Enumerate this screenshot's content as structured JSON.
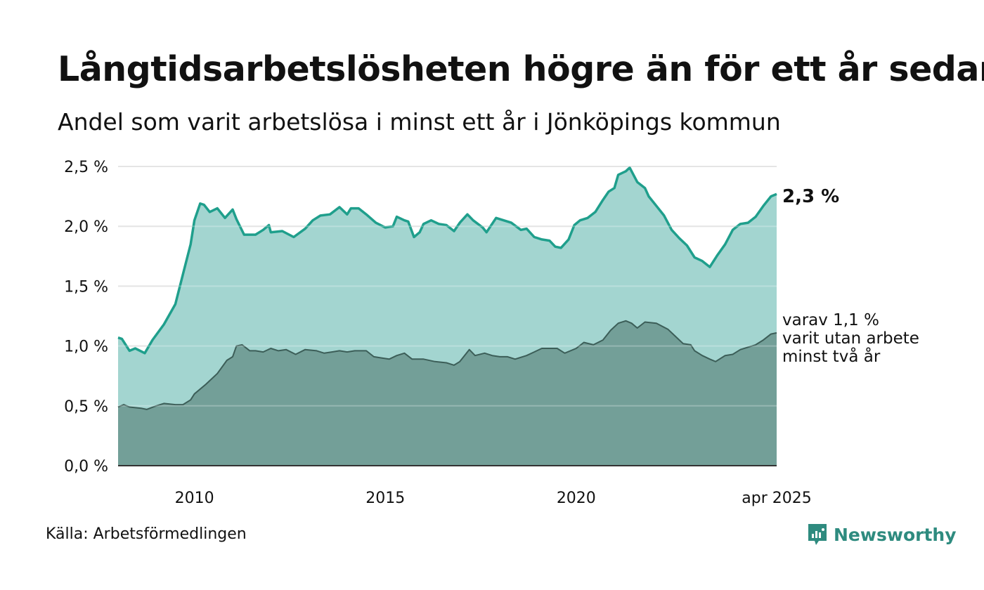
{
  "title": "Långtidsarbetslösheten högre än för ett år sedan",
  "subtitle": "Andel som varit arbetslösa i minst ett år i Jönköpings kommun",
  "source": "Källa: Arbetsförmedlingen",
  "brand": "Newsworthy",
  "colors": {
    "upper_fill": "#a3d5d0",
    "upper_line": "#1f9f8c",
    "lower_fill": "#739f98",
    "lower_line": "#3c5e58",
    "grid": "#dddddd",
    "brand": "#2e8b7f"
  },
  "chart_data": {
    "type": "area",
    "x_start": 2008.0,
    "x_end": 2025.25,
    "ylim": [
      0,
      2.5
    ],
    "yticks": [
      0,
      0.5,
      1.0,
      1.5,
      2.0,
      2.5
    ],
    "ytick_labels": [
      "0,0 %",
      "0,5 %",
      "1,0 %",
      "1,5 %",
      "2,0 %",
      "2,5 %"
    ],
    "xticks": [
      2010,
      2015,
      2020,
      2025.25
    ],
    "xtick_labels": [
      "2010",
      "2015",
      "2020",
      "apr 2025"
    ],
    "grid": true,
    "series": [
      {
        "role": "upper",
        "points": [
          [
            2008.0,
            1.07
          ],
          [
            2008.1,
            1.06
          ],
          [
            2008.3,
            0.96
          ],
          [
            2008.45,
            0.98
          ],
          [
            2008.7,
            0.94
          ],
          [
            2008.9,
            1.05
          ],
          [
            2009.2,
            1.18
          ],
          [
            2009.5,
            1.35
          ],
          [
            2009.7,
            1.6
          ],
          [
            2009.9,
            1.85
          ],
          [
            2010.0,
            2.05
          ],
          [
            2010.15,
            2.19
          ],
          [
            2010.25,
            2.18
          ],
          [
            2010.4,
            2.12
          ],
          [
            2010.6,
            2.15
          ],
          [
            2010.8,
            2.07
          ],
          [
            2011.0,
            2.14
          ],
          [
            2011.1,
            2.06
          ],
          [
            2011.3,
            1.93
          ],
          [
            2011.6,
            1.93
          ],
          [
            2011.8,
            1.97
          ],
          [
            2011.95,
            2.01
          ],
          [
            2012.0,
            1.95
          ],
          [
            2012.3,
            1.96
          ],
          [
            2012.6,
            1.91
          ],
          [
            2012.9,
            1.98
          ],
          [
            2013.1,
            2.05
          ],
          [
            2013.3,
            2.09
          ],
          [
            2013.55,
            2.1
          ],
          [
            2013.8,
            2.16
          ],
          [
            2014.0,
            2.1
          ],
          [
            2014.1,
            2.15
          ],
          [
            2014.3,
            2.15
          ],
          [
            2014.5,
            2.1
          ],
          [
            2014.75,
            2.03
          ],
          [
            2015.0,
            1.99
          ],
          [
            2015.2,
            2.0
          ],
          [
            2015.3,
            2.08
          ],
          [
            2015.5,
            2.05
          ],
          [
            2015.6,
            2.04
          ],
          [
            2015.75,
            1.91
          ],
          [
            2015.9,
            1.95
          ],
          [
            2016.0,
            2.02
          ],
          [
            2016.2,
            2.05
          ],
          [
            2016.4,
            2.02
          ],
          [
            2016.6,
            2.01
          ],
          [
            2016.8,
            1.96
          ],
          [
            2016.95,
            2.03
          ],
          [
            2017.15,
            2.1
          ],
          [
            2017.3,
            2.05
          ],
          [
            2017.55,
            1.99
          ],
          [
            2017.65,
            1.95
          ],
          [
            2017.9,
            2.07
          ],
          [
            2018.1,
            2.05
          ],
          [
            2018.3,
            2.03
          ],
          [
            2018.55,
            1.97
          ],
          [
            2018.7,
            1.98
          ],
          [
            2018.9,
            1.91
          ],
          [
            2019.1,
            1.89
          ],
          [
            2019.3,
            1.88
          ],
          [
            2019.45,
            1.83
          ],
          [
            2019.6,
            1.82
          ],
          [
            2019.8,
            1.89
          ],
          [
            2019.95,
            2.01
          ],
          [
            2020.1,
            2.05
          ],
          [
            2020.3,
            2.07
          ],
          [
            2020.5,
            2.12
          ],
          [
            2020.7,
            2.22
          ],
          [
            2020.85,
            2.29
          ],
          [
            2021.0,
            2.32
          ],
          [
            2021.1,
            2.43
          ],
          [
            2021.3,
            2.46
          ],
          [
            2021.4,
            2.49
          ],
          [
            2021.5,
            2.43
          ],
          [
            2021.6,
            2.37
          ],
          [
            2021.8,
            2.32
          ],
          [
            2021.9,
            2.25
          ],
          [
            2022.1,
            2.17
          ],
          [
            2022.3,
            2.09
          ],
          [
            2022.5,
            1.97
          ],
          [
            2022.7,
            1.9
          ],
          [
            2022.9,
            1.84
          ],
          [
            2023.1,
            1.74
          ],
          [
            2023.3,
            1.71
          ],
          [
            2023.5,
            1.66
          ],
          [
            2023.7,
            1.76
          ],
          [
            2023.9,
            1.85
          ],
          [
            2024.1,
            1.97
          ],
          [
            2024.3,
            2.02
          ],
          [
            2024.5,
            2.03
          ],
          [
            2024.7,
            2.08
          ],
          [
            2024.9,
            2.17
          ],
          [
            2025.1,
            2.25
          ],
          [
            2025.25,
            2.27
          ]
        ]
      },
      {
        "role": "lower",
        "points": [
          [
            2008.0,
            0.49
          ],
          [
            2008.15,
            0.51
          ],
          [
            2008.3,
            0.49
          ],
          [
            2008.6,
            0.48
          ],
          [
            2008.75,
            0.47
          ],
          [
            2009.0,
            0.5
          ],
          [
            2009.2,
            0.52
          ],
          [
            2009.5,
            0.51
          ],
          [
            2009.7,
            0.51
          ],
          [
            2009.9,
            0.55
          ],
          [
            2010.0,
            0.6
          ],
          [
            2010.3,
            0.68
          ],
          [
            2010.6,
            0.77
          ],
          [
            2010.85,
            0.88
          ],
          [
            2011.0,
            0.91
          ],
          [
            2011.1,
            1.0
          ],
          [
            2011.25,
            1.01
          ],
          [
            2011.45,
            0.96
          ],
          [
            2011.6,
            0.96
          ],
          [
            2011.8,
            0.95
          ],
          [
            2012.0,
            0.98
          ],
          [
            2012.2,
            0.96
          ],
          [
            2012.4,
            0.97
          ],
          [
            2012.65,
            0.93
          ],
          [
            2012.9,
            0.97
          ],
          [
            2013.2,
            0.96
          ],
          [
            2013.4,
            0.94
          ],
          [
            2013.6,
            0.95
          ],
          [
            2013.8,
            0.96
          ],
          [
            2014.0,
            0.95
          ],
          [
            2014.2,
            0.96
          ],
          [
            2014.5,
            0.96
          ],
          [
            2014.7,
            0.91
          ],
          [
            2014.9,
            0.9
          ],
          [
            2015.1,
            0.89
          ],
          [
            2015.3,
            0.92
          ],
          [
            2015.5,
            0.94
          ],
          [
            2015.7,
            0.89
          ],
          [
            2016.0,
            0.89
          ],
          [
            2016.3,
            0.87
          ],
          [
            2016.6,
            0.86
          ],
          [
            2016.8,
            0.84
          ],
          [
            2016.95,
            0.87
          ],
          [
            2017.2,
            0.97
          ],
          [
            2017.35,
            0.92
          ],
          [
            2017.6,
            0.94
          ],
          [
            2017.8,
            0.92
          ],
          [
            2018.0,
            0.91
          ],
          [
            2018.2,
            0.91
          ],
          [
            2018.4,
            0.89
          ],
          [
            2018.7,
            0.92
          ],
          [
            2018.9,
            0.95
          ],
          [
            2019.1,
            0.98
          ],
          [
            2019.35,
            0.98
          ],
          [
            2019.5,
            0.98
          ],
          [
            2019.7,
            0.94
          ],
          [
            2020.0,
            0.98
          ],
          [
            2020.2,
            1.03
          ],
          [
            2020.45,
            1.01
          ],
          [
            2020.7,
            1.05
          ],
          [
            2020.9,
            1.13
          ],
          [
            2021.1,
            1.19
          ],
          [
            2021.3,
            1.21
          ],
          [
            2021.45,
            1.19
          ],
          [
            2021.6,
            1.15
          ],
          [
            2021.8,
            1.2
          ],
          [
            2022.1,
            1.19
          ],
          [
            2022.4,
            1.14
          ],
          [
            2022.6,
            1.08
          ],
          [
            2022.8,
            1.02
          ],
          [
            2023.0,
            1.01
          ],
          [
            2023.1,
            0.96
          ],
          [
            2023.3,
            0.92
          ],
          [
            2023.5,
            0.89
          ],
          [
            2023.65,
            0.87
          ],
          [
            2023.9,
            0.92
          ],
          [
            2024.1,
            0.93
          ],
          [
            2024.3,
            0.97
          ],
          [
            2024.5,
            0.99
          ],
          [
            2024.7,
            1.01
          ],
          [
            2024.9,
            1.05
          ],
          [
            2025.1,
            1.1
          ],
          [
            2025.25,
            1.11
          ]
        ]
      }
    ],
    "annotations": {
      "end_value_label": "2,3 %",
      "lower_note": [
        "varav 1,1 %",
        "varit utan arbete",
        "minst två år"
      ]
    }
  }
}
